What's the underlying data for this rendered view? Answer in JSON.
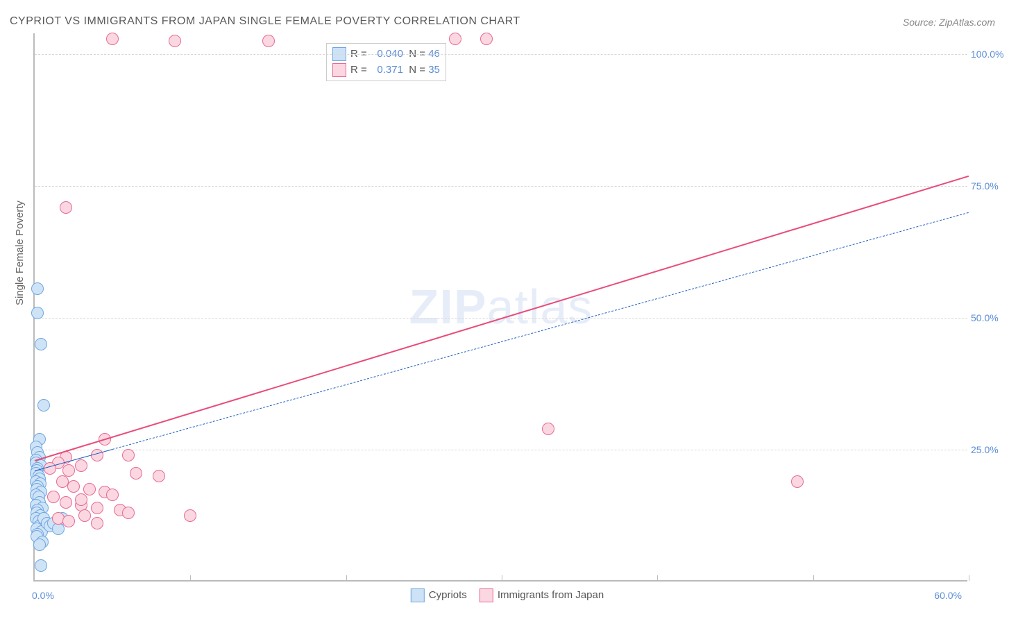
{
  "title": "CYPRIOT VS IMMIGRANTS FROM JAPAN SINGLE FEMALE POVERTY CORRELATION CHART",
  "source": "Source: ZipAtlas.com",
  "y_axis_label": "Single Female Poverty",
  "watermark": "ZIPatlas",
  "chart": {
    "type": "scatter",
    "xlim": [
      0,
      60
    ],
    "ylim": [
      0,
      104
    ],
    "x_ticks": [
      0,
      10,
      20,
      30,
      40,
      50,
      60
    ],
    "x_tick_labels": {
      "left": "0.0%",
      "right": "60.0%"
    },
    "y_ticks": [
      25,
      50,
      75,
      100
    ],
    "y_tick_labels": [
      "25.0%",
      "50.0%",
      "75.0%",
      "100.0%"
    ],
    "background_color": "#ffffff",
    "grid_color": "#d8d8d8",
    "axis_color": "#bbbbbb",
    "label_color": "#5b8dd6",
    "marker_radius": 9,
    "marker_border_width": 1.5
  },
  "series": [
    {
      "name": "Cypriots",
      "fill": "#cfe3f7",
      "stroke": "#6fa7e0",
      "reg_line_color": "#1f5fbf",
      "reg_line_dash": "4 4",
      "reg_line_width": 1.5,
      "reg_line_solid_end_x": 5,
      "R": "0.040",
      "N": "46",
      "reg_start": [
        0,
        21
      ],
      "reg_end": [
        60,
        70
      ],
      "points": [
        [
          0.2,
          55.5
        ],
        [
          0.2,
          51
        ],
        [
          0.4,
          45
        ],
        [
          0.6,
          33.5
        ],
        [
          0.3,
          27
        ],
        [
          0.1,
          25.5
        ],
        [
          0.2,
          24.5
        ],
        [
          0.3,
          23.5
        ],
        [
          0.1,
          23
        ],
        [
          0.1,
          22.5
        ],
        [
          0.4,
          22
        ],
        [
          0.2,
          21.5
        ],
        [
          0.15,
          21
        ],
        [
          0.1,
          20.5
        ],
        [
          0.25,
          20
        ],
        [
          0.3,
          19.5
        ],
        [
          0.1,
          19
        ],
        [
          0.35,
          18.5
        ],
        [
          0.2,
          18
        ],
        [
          0.15,
          17.5
        ],
        [
          0.4,
          17
        ],
        [
          0.1,
          16.5
        ],
        [
          0.25,
          16
        ],
        [
          0.3,
          15
        ],
        [
          0.1,
          14.5
        ],
        [
          0.5,
          14
        ],
        [
          0.2,
          13.5
        ],
        [
          0.15,
          13
        ],
        [
          0.35,
          12.5
        ],
        [
          0.1,
          12
        ],
        [
          0.25,
          11.5
        ],
        [
          0.5,
          11
        ],
        [
          0.3,
          10.5
        ],
        [
          0.15,
          10
        ],
        [
          0.45,
          9.5
        ],
        [
          0.6,
          12
        ],
        [
          0.8,
          11
        ],
        [
          1.0,
          10.5
        ],
        [
          1.2,
          11
        ],
        [
          1.5,
          10
        ],
        [
          1.8,
          12
        ],
        [
          0.2,
          9
        ],
        [
          0.15,
          8.5
        ],
        [
          0.4,
          3
        ],
        [
          0.5,
          7.5
        ],
        [
          0.3,
          7
        ]
      ]
    },
    {
      "name": "Immigrants from Japan",
      "fill": "#fbd7e1",
      "stroke": "#e76a92",
      "reg_line_color": "#e84c7a",
      "reg_line_dash": "",
      "reg_line_width": 2.5,
      "reg_line_solid_end_x": 60,
      "R": "0.371",
      "N": "35",
      "reg_start": [
        0,
        23
      ],
      "reg_end": [
        60,
        77
      ],
      "points": [
        [
          5,
          103
        ],
        [
          9,
          102.5
        ],
        [
          15,
          102.5
        ],
        [
          27,
          103
        ],
        [
          29,
          103
        ],
        [
          2,
          71
        ],
        [
          4.5,
          27
        ],
        [
          4,
          24
        ],
        [
          2,
          23.5
        ],
        [
          1.5,
          22.5
        ],
        [
          3,
          22
        ],
        [
          1,
          21.5
        ],
        [
          2.2,
          21
        ],
        [
          8,
          20
        ],
        [
          6.5,
          20.5
        ],
        [
          1.8,
          19
        ],
        [
          2.5,
          18
        ],
        [
          3.5,
          17.5
        ],
        [
          4.5,
          17
        ],
        [
          5,
          16.5
        ],
        [
          1.2,
          16
        ],
        [
          2,
          15
        ],
        [
          3,
          14.5
        ],
        [
          4,
          14
        ],
        [
          5.5,
          13.5
        ],
        [
          6,
          13
        ],
        [
          3.2,
          12.5
        ],
        [
          1.5,
          12
        ],
        [
          2.2,
          11.5
        ],
        [
          4,
          11
        ],
        [
          10,
          12.5
        ],
        [
          3,
          15.5
        ],
        [
          33,
          29
        ],
        [
          49,
          19
        ],
        [
          6,
          24
        ]
      ]
    }
  ],
  "regression_box": {
    "rows": [
      {
        "swatch_fill": "#cde2f6",
        "swatch_stroke": "#6fa7e0",
        "R": "0.040",
        "N": "46"
      },
      {
        "swatch_fill": "#fbd7e1",
        "swatch_stroke": "#e76a92",
        "R": "0.371",
        "N": "35"
      }
    ]
  },
  "legend": [
    {
      "label": "Cypriots",
      "fill": "#cde2f6",
      "stroke": "#6fa7e0"
    },
    {
      "label": "Immigrants from Japan",
      "fill": "#fbd7e1",
      "stroke": "#e76a92"
    }
  ]
}
